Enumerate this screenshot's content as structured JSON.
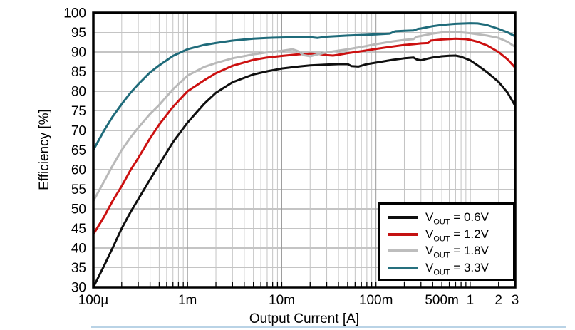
{
  "chart_data": {
    "type": "line",
    "title": "",
    "xlabel": "Output Current [A]",
    "ylabel": "Efficiency [%]",
    "x_scale": "log",
    "grid": true,
    "x_axis": {
      "min": 0.0001,
      "max": 3,
      "ticks": [
        {
          "value": 0.0001,
          "label": "100µ"
        },
        {
          "value": 0.001,
          "label": "1m"
        },
        {
          "value": 0.01,
          "label": "10m"
        },
        {
          "value": 0.1,
          "label": "100m"
        },
        {
          "value": 0.5,
          "label": "500m"
        },
        {
          "value": 1,
          "label": "1"
        },
        {
          "value": 2,
          "label": "2"
        },
        {
          "value": 3,
          "label": "3"
        }
      ]
    },
    "y_axis": {
      "min": 30,
      "max": 100,
      "step": 5,
      "tick_labels": [
        "100",
        "95",
        "90",
        "85",
        "80",
        "75",
        "70",
        "65",
        "60",
        "55",
        "50",
        "45",
        "40",
        "35",
        "30"
      ]
    },
    "legend": {
      "position": "bottom-right",
      "entries": [
        {
          "id": "vout-0v6",
          "label": "VOUT = 0.6V",
          "sym": "V",
          "sub": "OUT",
          "eq": "= 0.6V",
          "color": "#0f0f0f"
        },
        {
          "id": "vout-1v2",
          "label": "VOUT = 1.2V",
          "sym": "V",
          "sub": "OUT",
          "eq": "= 1.2V",
          "color": "#c41212"
        },
        {
          "id": "vout-1v8",
          "label": "VOUT = 1.8V",
          "sym": "V",
          "sub": "OUT",
          "eq": "= 1.8V",
          "color": "#bdbdbd"
        },
        {
          "id": "vout-3v3",
          "label": "VOUT = 3.3V",
          "sym": "V",
          "sub": "OUT",
          "eq": "= 3.3V",
          "color": "#26707e"
        }
      ]
    },
    "series": [
      {
        "id": "vout-0v6",
        "name": "VOUT = 0.6V",
        "color": "#0f0f0f",
        "points": [
          [
            0.0001,
            30
          ],
          [
            0.00013,
            35.5
          ],
          [
            0.00016,
            40
          ],
          [
            0.0002,
            45
          ],
          [
            0.00025,
            49.3
          ],
          [
            0.0003,
            52.5
          ],
          [
            0.0004,
            57.5
          ],
          [
            0.0005,
            61.3
          ],
          [
            0.0007,
            67
          ],
          [
            0.001,
            72
          ],
          [
            0.0015,
            76.8
          ],
          [
            0.002,
            79.6
          ],
          [
            0.003,
            82.3
          ],
          [
            0.005,
            84.3
          ],
          [
            0.007,
            85.1
          ],
          [
            0.01,
            85.8
          ],
          [
            0.015,
            86.3
          ],
          [
            0.02,
            86.6
          ],
          [
            0.03,
            86.8
          ],
          [
            0.04,
            86.9
          ],
          [
            0.05,
            86.9
          ],
          [
            0.055,
            86.4
          ],
          [
            0.065,
            86.3
          ],
          [
            0.08,
            86.9
          ],
          [
            0.1,
            87.3
          ],
          [
            0.15,
            88
          ],
          [
            0.2,
            88.4
          ],
          [
            0.25,
            88.6
          ],
          [
            0.27,
            88.1
          ],
          [
            0.3,
            87.9
          ],
          [
            0.35,
            88.3
          ],
          [
            0.4,
            88.6
          ],
          [
            0.5,
            88.9
          ],
          [
            0.6,
            89.05
          ],
          [
            0.7,
            89.1
          ],
          [
            0.8,
            88.8
          ],
          [
            1,
            87.9
          ],
          [
            1.2,
            86.6
          ],
          [
            1.5,
            84.9
          ],
          [
            2,
            82.4
          ],
          [
            2.5,
            79.6
          ],
          [
            3,
            76.3
          ]
        ]
      },
      {
        "id": "vout-1v2",
        "name": "VOUT = 1.2V",
        "color": "#cc1010",
        "points": [
          [
            0.0001,
            43.5
          ],
          [
            0.00013,
            48
          ],
          [
            0.00016,
            52
          ],
          [
            0.0002,
            55.8
          ],
          [
            0.00025,
            60
          ],
          [
            0.0003,
            63
          ],
          [
            0.0004,
            68
          ],
          [
            0.0005,
            71.5
          ],
          [
            0.0007,
            76
          ],
          [
            0.001,
            80
          ],
          [
            0.0015,
            82.8
          ],
          [
            0.002,
            84.6
          ],
          [
            0.003,
            86.5
          ],
          [
            0.005,
            88
          ],
          [
            0.007,
            88.6
          ],
          [
            0.01,
            89
          ],
          [
            0.015,
            89.4
          ],
          [
            0.02,
            89.6
          ],
          [
            0.025,
            89.5
          ],
          [
            0.03,
            89.2
          ],
          [
            0.035,
            89.1
          ],
          [
            0.04,
            89.3
          ],
          [
            0.05,
            89.7
          ],
          [
            0.07,
            90.2
          ],
          [
            0.1,
            90.8
          ],
          [
            0.15,
            91.4
          ],
          [
            0.2,
            91.8
          ],
          [
            0.25,
            92
          ],
          [
            0.3,
            92.2
          ],
          [
            0.36,
            92.3
          ],
          [
            0.38,
            92.9
          ],
          [
            0.45,
            93.1
          ],
          [
            0.5,
            93.2
          ],
          [
            0.7,
            93.4
          ],
          [
            0.9,
            93.3
          ],
          [
            1,
            93.1
          ],
          [
            1.2,
            92.6
          ],
          [
            1.5,
            91.7
          ],
          [
            2,
            90
          ],
          [
            2.5,
            88.1
          ],
          [
            3,
            86
          ]
        ]
      },
      {
        "id": "vout-1v8",
        "name": "VOUT = 1.8V",
        "color": "#b9b9b9",
        "points": [
          [
            0.0001,
            52
          ],
          [
            0.00013,
            57
          ],
          [
            0.00016,
            61
          ],
          [
            0.0002,
            65
          ],
          [
            0.00025,
            68.3
          ],
          [
            0.0003,
            70.7
          ],
          [
            0.0004,
            74.2
          ],
          [
            0.0005,
            76.5
          ],
          [
            0.0007,
            80.5
          ],
          [
            0.001,
            84
          ],
          [
            0.0015,
            86.2
          ],
          [
            0.002,
            87.2
          ],
          [
            0.003,
            88.4
          ],
          [
            0.005,
            89.4
          ],
          [
            0.007,
            89.9
          ],
          [
            0.01,
            90.3
          ],
          [
            0.013,
            90.7
          ],
          [
            0.015,
            90.2
          ],
          [
            0.017,
            89.2
          ],
          [
            0.02,
            88.9
          ],
          [
            0.023,
            89.3
          ],
          [
            0.03,
            89.9
          ],
          [
            0.05,
            90.7
          ],
          [
            0.07,
            91.3
          ],
          [
            0.1,
            92
          ],
          [
            0.15,
            92.7
          ],
          [
            0.2,
            93.1
          ],
          [
            0.25,
            93.3
          ],
          [
            0.27,
            93.9
          ],
          [
            0.3,
            94.1
          ],
          [
            0.4,
            94.7
          ],
          [
            0.5,
            95
          ],
          [
            0.6,
            95.2
          ],
          [
            0.7,
            95.15
          ],
          [
            1,
            94.8
          ],
          [
            1.5,
            94.2
          ],
          [
            2,
            93.6
          ],
          [
            2.5,
            92.6
          ],
          [
            3,
            91.3
          ]
        ]
      },
      {
        "id": "vout-3v3",
        "name": "VOUT = 3.3V",
        "color": "#1f6b7a",
        "points": [
          [
            0.0001,
            65
          ],
          [
            0.00013,
            70
          ],
          [
            0.00016,
            73.5
          ],
          [
            0.0002,
            76.7
          ],
          [
            0.00025,
            79.7
          ],
          [
            0.0003,
            81.8
          ],
          [
            0.0004,
            84.8
          ],
          [
            0.0005,
            86.6
          ],
          [
            0.0007,
            89
          ],
          [
            0.001,
            90.7
          ],
          [
            0.0015,
            91.8
          ],
          [
            0.002,
            92.3
          ],
          [
            0.003,
            92.9
          ],
          [
            0.005,
            93.4
          ],
          [
            0.007,
            93.6
          ],
          [
            0.01,
            93.7
          ],
          [
            0.015,
            93.8
          ],
          [
            0.02,
            93.8
          ],
          [
            0.024,
            93.6
          ],
          [
            0.03,
            93.9
          ],
          [
            0.05,
            94.2
          ],
          [
            0.07,
            94.35
          ],
          [
            0.1,
            94.5
          ],
          [
            0.14,
            94.7
          ],
          [
            0.16,
            95.3
          ],
          [
            0.2,
            95.4
          ],
          [
            0.25,
            95.5
          ],
          [
            0.28,
            95.9
          ],
          [
            0.3,
            96
          ],
          [
            0.4,
            96.6
          ],
          [
            0.5,
            96.9
          ],
          [
            0.7,
            97.2
          ],
          [
            1,
            97.35
          ],
          [
            1.2,
            97.3
          ],
          [
            1.5,
            96.9
          ],
          [
            2,
            95.9
          ],
          [
            2.5,
            95
          ],
          [
            3,
            94
          ]
        ]
      }
    ],
    "colors": {
      "grid_major": "#8a8a8a",
      "grid_minor": "#c4c4c4",
      "grid_decade": "#9a9a9a",
      "frame": "#000000",
      "divider": "#b9d3e6"
    }
  }
}
